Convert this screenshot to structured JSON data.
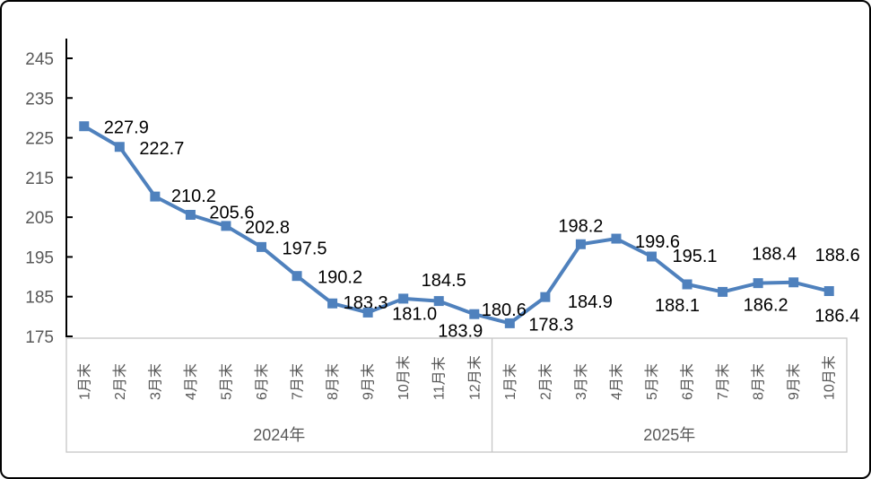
{
  "chart_data": {
    "type": "line",
    "title": "",
    "categories": [
      "1月末",
      "2月末",
      "3月末",
      "4月末",
      "5月末",
      "6月末",
      "7月末",
      "8月末",
      "9月末",
      "10月末",
      "11月末",
      "12月末",
      "1月末",
      "2月末",
      "3月末",
      "4月末",
      "5月末",
      "6月末",
      "7月末",
      "8月末",
      "9月末",
      "10月末"
    ],
    "series": [
      {
        "name": "",
        "values": [
          227.9,
          222.7,
          210.2,
          205.6,
          202.8,
          197.5,
          190.2,
          183.3,
          181.0,
          184.5,
          183.9,
          180.6,
          178.3,
          184.9,
          198.2,
          199.6,
          195.1,
          188.1,
          186.2,
          188.4,
          188.6,
          186.4
        ]
      }
    ],
    "category_groups": [
      {
        "label": "2024年",
        "count": 12
      },
      {
        "label": "2025年",
        "count": 10
      }
    ],
    "ylim": [
      175,
      250
    ],
    "yticks": [
      175,
      185,
      195,
      205,
      215,
      225,
      235,
      245
    ],
    "grid": false,
    "legend": "none",
    "data_labels": "on",
    "data_label_decimals": 1,
    "marker_style": "square",
    "colors": {
      "line": "#4F81BD",
      "marker": "#4F81BD",
      "data_label": "#000000",
      "axis_line": "#000000",
      "axis_text": "#595959",
      "category_box_border": "#C6C6C6",
      "frame_border": "#000000",
      "background": "#FFFFFF"
    }
  }
}
